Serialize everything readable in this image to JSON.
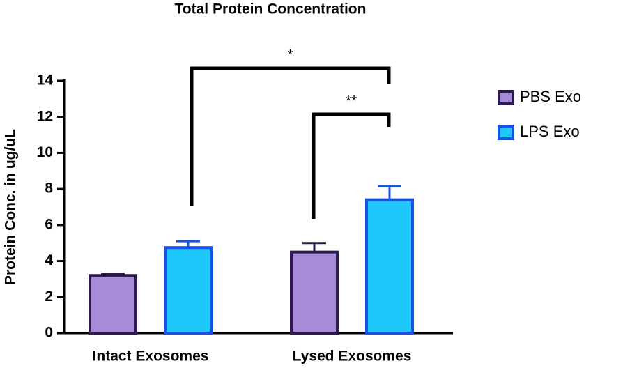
{
  "chart_data": {
    "type": "bar",
    "title": "Total Protein  Concentration",
    "y_label": "Protein Conc. in ug/uL",
    "categories": [
      "Intact Exosomes",
      "Lysed Exosomes"
    ],
    "series": [
      {
        "name": "PBS Exo",
        "color": "#a78bd6",
        "edge": "#2d1b4e",
        "values": [
          3.2,
          4.5
        ],
        "errors": [
          0.1,
          0.5
        ]
      },
      {
        "name": "LPS Exo",
        "color": "#1fc8fb",
        "edge": "#1553e6",
        "values": [
          4.75,
          7.4
        ],
        "errors": [
          0.35,
          0.75
        ]
      }
    ],
    "ylim": [
      0,
      14
    ],
    "yticks": [
      0,
      2,
      4,
      6,
      8,
      10,
      12,
      14
    ],
    "annotations": [
      {
        "text": "*"
      },
      {
        "text": "**"
      }
    ],
    "legend": "right"
  }
}
